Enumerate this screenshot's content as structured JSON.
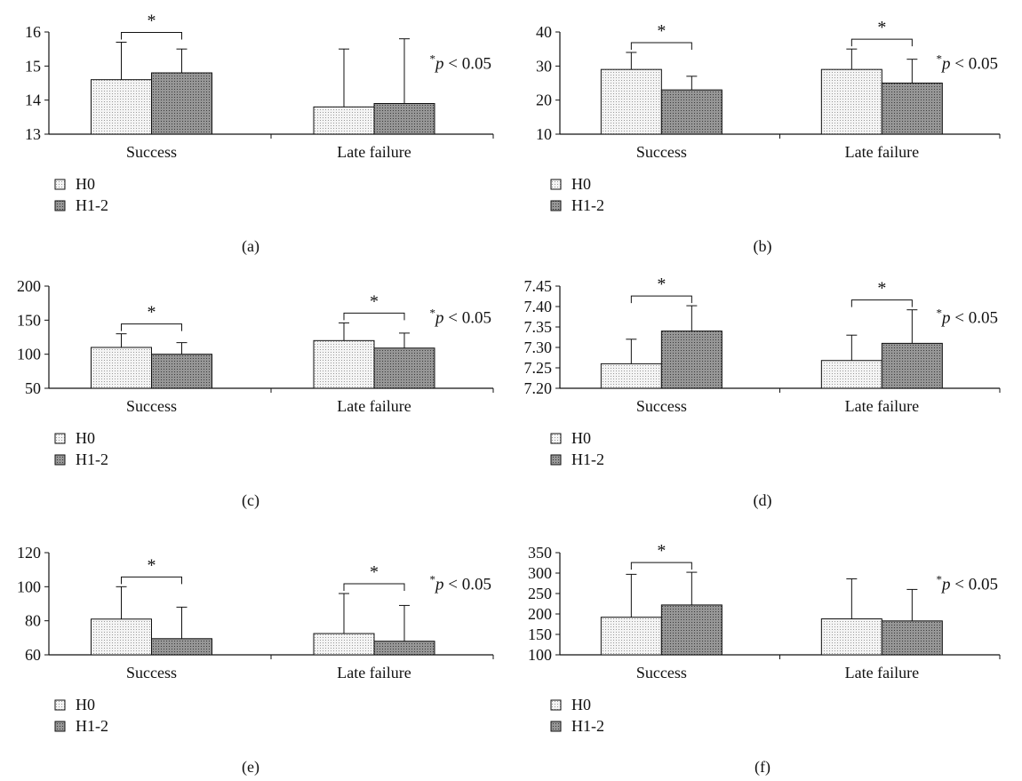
{
  "colors": {
    "h0": "#f2f2f2",
    "h1": "#8f8f8f",
    "outline": "#111111"
  },
  "legend": [
    "H0",
    "H1-2"
  ],
  "chart_data": [
    {
      "type": "bar",
      "panel": "(a)",
      "categories": [
        "Success",
        "Late failure"
      ],
      "series": [
        {
          "name": "H0",
          "values": [
            14.6,
            13.8
          ],
          "errors": [
            1.1,
            1.7
          ]
        },
        {
          "name": "H1-2",
          "values": [
            14.8,
            13.9
          ],
          "errors": [
            0.7,
            1.9
          ]
        }
      ],
      "ylim": [
        13,
        16
      ],
      "yticks": [
        13,
        14,
        15,
        16
      ],
      "yticklabels": [
        "13",
        "14",
        "15",
        "16"
      ],
      "significance": [
        0
      ],
      "annotation": "*p < 0.05"
    },
    {
      "type": "bar",
      "panel": "(b)",
      "categories": [
        "Success",
        "Late failure"
      ],
      "series": [
        {
          "name": "H0",
          "values": [
            29,
            29
          ],
          "errors": [
            5,
            6
          ]
        },
        {
          "name": "H1-2",
          "values": [
            23,
            25
          ],
          "errors": [
            4,
            7
          ]
        }
      ],
      "ylim": [
        10,
        40
      ],
      "yticks": [
        10,
        20,
        30,
        40
      ],
      "yticklabels": [
        "10",
        "20",
        "30",
        "40"
      ],
      "significance": [
        0,
        1
      ],
      "annotation": "*p < 0.05"
    },
    {
      "type": "bar",
      "panel": "(c)",
      "categories": [
        "Success",
        "Late failure"
      ],
      "series": [
        {
          "name": "H0",
          "values": [
            110,
            120
          ],
          "errors": [
            20,
            26
          ]
        },
        {
          "name": "H1-2",
          "values": [
            100,
            109
          ],
          "errors": [
            17,
            22
          ]
        }
      ],
      "ylim": [
        50,
        200
      ],
      "yticks": [
        50,
        100,
        150,
        200
      ],
      "yticklabels": [
        "50",
        "100",
        "150",
        "200"
      ],
      "significance": [
        0,
        1
      ],
      "annotation": "*p < 0.05"
    },
    {
      "type": "bar",
      "panel": "(d)",
      "categories": [
        "Success",
        "Late failure"
      ],
      "series": [
        {
          "name": "H0",
          "values": [
            7.26,
            7.268
          ],
          "errors": [
            0.06,
            0.062
          ]
        },
        {
          "name": "H1-2",
          "values": [
            7.34,
            7.31
          ],
          "errors": [
            0.062,
            0.082
          ]
        }
      ],
      "ylim": [
        7.2,
        7.45
      ],
      "yticks": [
        7.2,
        7.25,
        7.3,
        7.35,
        7.4,
        7.45
      ],
      "yticklabels": [
        "7.20",
        "7.25",
        "7.30",
        "7.35",
        "7.40",
        "7.45"
      ],
      "significance": [
        0,
        1
      ],
      "annotation": "*p < 0.05"
    },
    {
      "type": "bar",
      "panel": "(e)",
      "categories": [
        "Success",
        "Late failure"
      ],
      "series": [
        {
          "name": "H0",
          "values": [
            81,
            72.5
          ],
          "errors": [
            19,
            23.5
          ]
        },
        {
          "name": "H1-2",
          "values": [
            69.5,
            68
          ],
          "errors": [
            18.5,
            21
          ]
        }
      ],
      "ylim": [
        60,
        120
      ],
      "yticks": [
        60,
        80,
        100,
        120
      ],
      "yticklabels": [
        "60",
        "80",
        "100",
        "120"
      ],
      "significance": [
        0,
        1
      ],
      "annotation": "*p < 0.05"
    },
    {
      "type": "bar",
      "panel": "(f)",
      "categories": [
        "Success",
        "Late failure"
      ],
      "series": [
        {
          "name": "H0",
          "values": [
            192,
            188
          ],
          "errors": [
            105,
            98
          ]
        },
        {
          "name": "H1-2",
          "values": [
            222,
            183
          ],
          "errors": [
            80,
            77
          ]
        }
      ],
      "ylim": [
        100,
        350
      ],
      "yticks": [
        100,
        150,
        200,
        250,
        300,
        350
      ],
      "yticklabels": [
        "100",
        "150",
        "200",
        "250",
        "300",
        "350"
      ],
      "significance": [
        0
      ],
      "annotation": "*p < 0.05"
    }
  ]
}
